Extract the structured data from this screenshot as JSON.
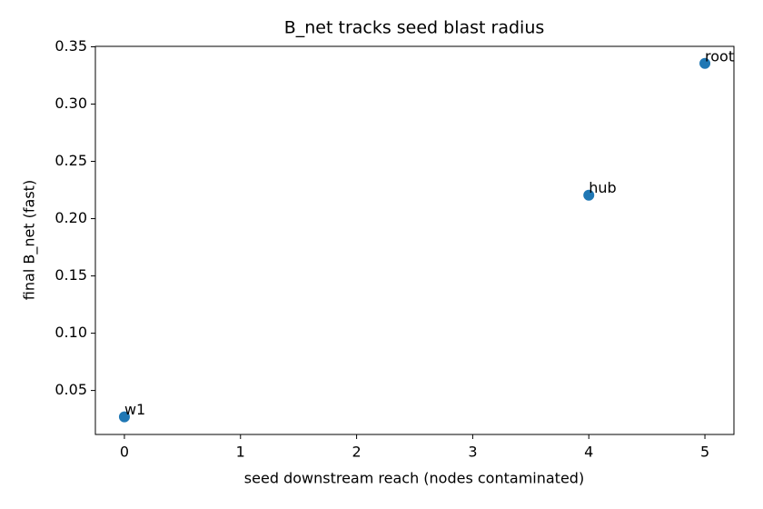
{
  "chart_data": {
    "type": "scatter",
    "title": "B_net tracks seed blast radius",
    "x_label": "seed downstream reach (nodes contaminated)",
    "y_label": "final B_net (fast)",
    "series": [
      {
        "color": "#1f77b4",
        "x": [
          0,
          4,
          5
        ],
        "values": [
          0.027,
          0.2205,
          0.3355
        ],
        "labels": [
          "w1",
          "hub",
          "root"
        ]
      }
    ],
    "xlim": [
      -0.25,
      5.25
    ],
    "ylim": [
      0.0116,
      0.3504
    ],
    "xticks": [
      0,
      1,
      2,
      3,
      4,
      5
    ],
    "yticks": [
      0.05,
      {
        "value": 0.1,
        "label": "0.10"
      },
      0.15,
      {
        "value": 0.2,
        "label": "0.20"
      },
      0.25,
      {
        "value": 0.3,
        "label": "0.30"
      },
      0.35
    ],
    "grid": false
  }
}
